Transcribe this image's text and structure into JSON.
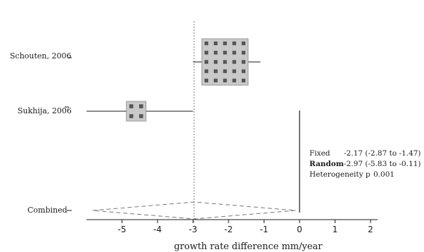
{
  "chart_data": {
    "type": "forest",
    "xlabel": "growth rate difference mm/year",
    "xlim": [
      -6,
      2.2
    ],
    "xticks": [
      -5,
      -4,
      -3,
      -2,
      -1,
      0,
      1,
      2
    ],
    "tick_labels": [
      "-5",
      "-4",
      "-3",
      "-2",
      "-1",
      "0",
      "1",
      "2"
    ],
    "reference_line": -2.97,
    "studies": [
      {
        "label": "Schouten, 2006",
        "estimate": -2.1,
        "ci": [
          -3,
          -1.1
        ]
      },
      {
        "label": "Sukhija, 2006",
        "estimate": -4.6,
        "ci": [
          -6.0,
          -3.0
        ]
      }
    ],
    "pooled": [
      {
        "name": "Fixed",
        "text": "-2.17 (-2.87 to -1.47)",
        "estimate": -2.17,
        "ci": [
          -2.87,
          -1.47
        ]
      },
      {
        "name": "Random",
        "text": "-2.97 (-5.83 to -0.11)",
        "estimate": -2.97,
        "ci": [
          -5.83,
          -0.11
        ]
      }
    ],
    "combined_label": "Combined",
    "heterogeneity": {
      "label": "Heterogeneity p",
      "value": "0.001"
    }
  },
  "colors": {
    "ink": "#1a1a1a",
    "box_fill": "#c9c9c9",
    "box_mark": "#555555",
    "dash": "#777777"
  }
}
